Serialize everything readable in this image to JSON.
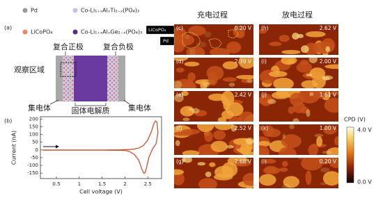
{
  "panel_a": {
    "label": "(a)",
    "legend": [
      "Pd",
      "LiCoPO₄",
      "Co-Li₁₊ₓAlₓTi₂₋ₓ(PO₄)₃",
      "Co-Li₁₊ₓAlₓGe₂₋ₓ(PO₄)₃"
    ],
    "cathode": "复合正极",
    "anode": "复合负极",
    "region": "观察区域",
    "collector_left": "集电体",
    "electrolyte": "固体电解质",
    "collector_right": "集电体"
  },
  "chart_data": {
    "type": "line",
    "label": "(b)",
    "x_label": "Cell voltage (V)",
    "y_label": "Current (nA)",
    "color": "#d2502a",
    "x": [
      0.2,
      0.5,
      1.0,
      1.5,
      1.9,
      2.1,
      2.2,
      2.3,
      2.4,
      2.5,
      2.58,
      2.63,
      2.67,
      2.7,
      2.72,
      2.68,
      2.6,
      2.52,
      2.47,
      2.44,
      2.41,
      2.37,
      2.3,
      2.2,
      2.1,
      2.0,
      1.5,
      1.0,
      0.5,
      0.2
    ],
    "values": [
      0,
      0,
      0,
      0,
      1,
      3,
      6,
      12,
      28,
      65,
      120,
      170,
      188,
      180,
      110,
      40,
      5,
      -50,
      -115,
      -148,
      -150,
      -125,
      -65,
      -28,
      -10,
      -3,
      -1,
      -1,
      -1,
      -1
    ],
    "xlim": [
      0.15,
      2.8
    ],
    "ylim": [
      -185,
      215
    ],
    "xticks": [
      0.5,
      1.0,
      1.5,
      2.0,
      2.5
    ],
    "yticks": [
      -150,
      -100,
      -50,
      0,
      50,
      100,
      150,
      200
    ]
  },
  "kpfm": {
    "charge_title": "充电过程",
    "discharge_title": "放电过程",
    "charge": [
      {
        "label": "(c)",
        "voltage": "0.20 V"
      },
      {
        "label": "(d)",
        "voltage": "2.39 V"
      },
      {
        "label": "(e)",
        "voltage": "2.42 V"
      },
      {
        "label": "(f)",
        "voltage": "2.52 V"
      },
      {
        "label": "(g)",
        "voltage": "2.68 V"
      }
    ],
    "discharge": [
      {
        "label": "(h)",
        "voltage": "2.62 V"
      },
      {
        "label": "(i)",
        "voltage": "2.00 V"
      },
      {
        "label": "(j)",
        "voltage": "1.61 V"
      },
      {
        "label": "(k)",
        "voltage": "1.00 V"
      },
      {
        "label": "(l)",
        "voltage": "0.20 V"
      }
    ],
    "inset_labels": [
      "LiCoPO₄",
      "Pd"
    ],
    "colorbar": {
      "title": "CPD (V)",
      "max": "4.0 V",
      "min": "0.0 V"
    }
  }
}
